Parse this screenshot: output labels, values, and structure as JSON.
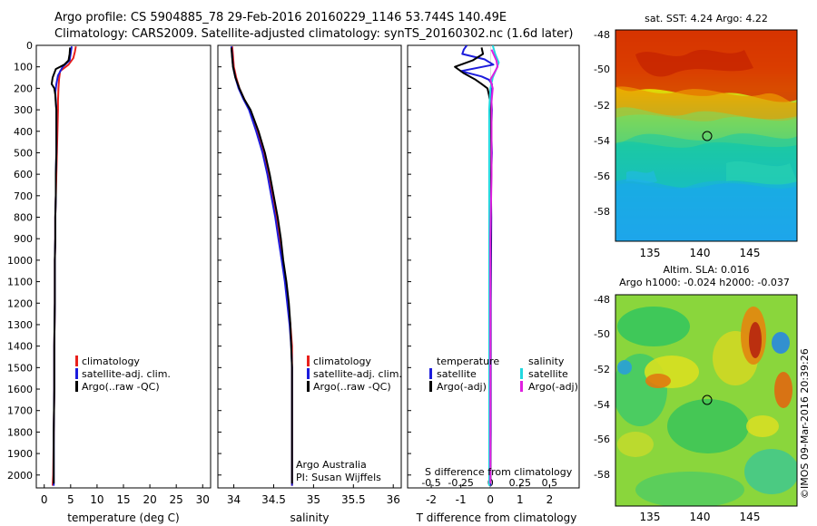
{
  "header": {
    "line1": "Argo profile: CS 5904885_78 29-Feb-2016 20160229_1146 53.744S 140.49E",
    "line2": "Climatology: CARS2009. Satellite-adjusted climatology: synTS_20160302.nc (1.6d later)"
  },
  "colors": {
    "climatology": "#e8201c",
    "satellite": "#1c1cdc",
    "argo": "#000000",
    "salinity_satellite": "#22d8e0",
    "salinity_argo": "#e020e0"
  },
  "chart_data": [
    {
      "type": "line",
      "xlabel": "temperature (deg C)",
      "ylabel": "",
      "xlim": [
        -1.5,
        31.5
      ],
      "ylim": [
        2060,
        0
      ],
      "xticks": [
        0,
        5,
        10,
        15,
        20,
        25,
        30
      ],
      "yticks": [
        0,
        100,
        200,
        300,
        400,
        500,
        600,
        700,
        800,
        900,
        1000,
        1100,
        1200,
        1300,
        1400,
        1500,
        1600,
        1700,
        1800,
        1900,
        2000
      ],
      "legend": [
        "climatology",
        "satellite-adj. clim.",
        "Argo(..raw -QC)"
      ],
      "legend_position": "lower-left",
      "series": [
        {
          "name": "climatology",
          "color": "#e8201c",
          "points": [
            [
              6.0,
              5
            ],
            [
              5.8,
              30
            ],
            [
              5.5,
              60
            ],
            [
              4.6,
              90
            ],
            [
              3.0,
              120
            ],
            [
              2.8,
              160
            ],
            [
              2.7,
              200
            ],
            [
              2.6,
              260
            ],
            [
              2.6,
              300
            ],
            [
              2.5,
              400
            ],
            [
              2.4,
              500
            ],
            [
              2.3,
              600
            ],
            [
              2.2,
              700
            ],
            [
              2.1,
              800
            ],
            [
              2.1,
              900
            ],
            [
              2.0,
              1000
            ],
            [
              2.0,
              1200
            ],
            [
              1.9,
              1400
            ],
            [
              1.9,
              1600
            ],
            [
              1.8,
              1800
            ],
            [
              1.7,
              2000
            ],
            [
              1.6,
              2050
            ]
          ]
        },
        {
          "name": "satellite-adj. clim.",
          "color": "#1c1cdc",
          "points": [
            [
              5.2,
              5
            ],
            [
              5.0,
              40
            ],
            [
              4.8,
              70
            ],
            [
              3.5,
              100
            ],
            [
              2.6,
              140
            ],
            [
              2.3,
              180
            ],
            [
              2.1,
              220
            ],
            [
              2.2,
              260
            ],
            [
              2.3,
              300
            ],
            [
              2.3,
              400
            ],
            [
              2.3,
              500
            ],
            [
              2.2,
              600
            ],
            [
              2.2,
              700
            ],
            [
              2.1,
              800
            ],
            [
              2.1,
              900
            ],
            [
              2.0,
              1000
            ],
            [
              2.0,
              1200
            ],
            [
              1.9,
              1400
            ],
            [
              1.9,
              1600
            ],
            [
              1.8,
              1800
            ],
            [
              1.8,
              2000
            ],
            [
              1.8,
              2050
            ]
          ]
        },
        {
          "name": "Argo(..raw -QC)",
          "color": "#000000",
          "points": [
            [
              4.9,
              10
            ],
            [
              4.8,
              40
            ],
            [
              4.6,
              70
            ],
            [
              3.8,
              90
            ],
            [
              2.2,
              110
            ],
            [
              1.6,
              150
            ],
            [
              1.4,
              180
            ],
            [
              1.9,
              200
            ],
            [
              2.1,
              230
            ],
            [
              2.2,
              270
            ],
            [
              2.3,
              300
            ],
            [
              2.3,
              400
            ],
            [
              2.3,
              500
            ],
            [
              2.2,
              600
            ],
            [
              2.2,
              700
            ],
            [
              2.1,
              800
            ],
            [
              2.1,
              900
            ],
            [
              2.0,
              1000
            ],
            [
              2.0,
              1200
            ],
            [
              1.9,
              1400
            ],
            [
              1.9,
              1600
            ],
            [
              1.8,
              1800
            ],
            [
              1.8,
              2000
            ],
            [
              1.8,
              2040
            ]
          ]
        }
      ]
    },
    {
      "type": "line",
      "xlabel": "salinity",
      "ylabel": "",
      "xlim": [
        33.8,
        36.1
      ],
      "ylim": [
        2060,
        0
      ],
      "xticks": [
        34,
        34.5,
        35,
        35.5,
        36
      ],
      "legend": [
        "climatology",
        "satellite-adj. clim.",
        "Argo(..raw -QC)"
      ],
      "legend_position": "lower-right",
      "annotations": [
        "Argo Australia",
        "PI: Susan Wijffels"
      ],
      "series": [
        {
          "name": "climatology",
          "color": "#e8201c",
          "points": [
            [
              33.98,
              5
            ],
            [
              33.99,
              50
            ],
            [
              34.0,
              100
            ],
            [
              34.03,
              150
            ],
            [
              34.07,
              200
            ],
            [
              34.13,
              250
            ],
            [
              34.2,
              300
            ],
            [
              34.29,
              400
            ],
            [
              34.37,
              500
            ],
            [
              34.43,
              600
            ],
            [
              34.48,
              700
            ],
            [
              34.53,
              800
            ],
            [
              34.57,
              900
            ],
            [
              34.61,
              1000
            ],
            [
              34.65,
              1100
            ],
            [
              34.68,
              1200
            ],
            [
              34.71,
              1300
            ],
            [
              34.73,
              1400
            ],
            [
              34.73,
              1500
            ],
            [
              34.73,
              1600
            ],
            [
              34.73,
              1800
            ],
            [
              34.73,
              2000
            ],
            [
              34.73,
              2050
            ]
          ]
        },
        {
          "name": "satellite-adj. clim.",
          "color": "#1c1cdc",
          "points": [
            [
              33.97,
              5
            ],
            [
              33.98,
              50
            ],
            [
              33.99,
              100
            ],
            [
              34.02,
              150
            ],
            [
              34.06,
              200
            ],
            [
              34.12,
              250
            ],
            [
              34.19,
              300
            ],
            [
              34.28,
              400
            ],
            [
              34.36,
              500
            ],
            [
              34.42,
              600
            ],
            [
              34.47,
              700
            ],
            [
              34.52,
              800
            ],
            [
              34.56,
              900
            ],
            [
              34.6,
              1000
            ],
            [
              34.64,
              1100
            ],
            [
              34.67,
              1200
            ],
            [
              34.7,
              1300
            ],
            [
              34.72,
              1400
            ],
            [
              34.73,
              1500
            ],
            [
              34.73,
              1600
            ],
            [
              34.73,
              1800
            ],
            [
              34.73,
              2000
            ],
            [
              34.73,
              2050
            ]
          ]
        },
        {
          "name": "Argo(..raw -QC)",
          "color": "#000000",
          "points": [
            [
              33.97,
              10
            ],
            [
              33.98,
              60
            ],
            [
              33.99,
              100
            ],
            [
              34.02,
              150
            ],
            [
              34.07,
              200
            ],
            [
              34.13,
              250
            ],
            [
              34.21,
              300
            ],
            [
              34.31,
              400
            ],
            [
              34.39,
              500
            ],
            [
              34.45,
              600
            ],
            [
              34.5,
              700
            ],
            [
              34.55,
              800
            ],
            [
              34.59,
              900
            ],
            [
              34.62,
              1000
            ],
            [
              34.66,
              1100
            ],
            [
              34.69,
              1200
            ],
            [
              34.71,
              1300
            ],
            [
              34.72,
              1400
            ],
            [
              34.73,
              1500
            ],
            [
              34.73,
              1700
            ],
            [
              34.73,
              1900
            ],
            [
              34.73,
              2040
            ]
          ]
        }
      ]
    },
    {
      "type": "line",
      "xlabel": "T difference from climatology",
      "x2label": "S difference from climatology",
      "ylabel": "",
      "xlim": [
        -2.8,
        3.0
      ],
      "x2lim": [
        -0.7,
        0.75
      ],
      "ylim": [
        2060,
        0
      ],
      "xticks": [
        -2,
        -1,
        0,
        1,
        2
      ],
      "x2ticks": [
        -0.5,
        -0.25,
        0,
        0.25,
        0.5
      ],
      "legend_groups": [
        {
          "title": "temperature",
          "entries": [
            "satellite",
            "Argo(-adj)"
          ]
        },
        {
          "title": "salinity",
          "entries": [
            "satellite",
            "Argo(-adj)"
          ]
        }
      ],
      "series": [
        {
          "name": "temperature satellite",
          "color": "#1c1cdc",
          "points": [
            [
              -0.8,
              0
            ],
            [
              -0.9,
              20
            ],
            [
              -0.95,
              40
            ],
            [
              -0.2,
              65
            ],
            [
              0.1,
              90
            ],
            [
              -1.0,
              120
            ],
            [
              -0.3,
              145
            ],
            [
              -0.05,
              160
            ],
            [
              0.05,
              180
            ],
            [
              0.02,
              220
            ],
            [
              0.05,
              300
            ],
            [
              0.03,
              400
            ],
            [
              0.05,
              500
            ],
            [
              0.03,
              600
            ],
            [
              0.02,
              700
            ],
            [
              0.03,
              800
            ],
            [
              0.02,
              1000
            ],
            [
              0.01,
              1200
            ],
            [
              0.01,
              1500
            ],
            [
              0.01,
              1800
            ],
            [
              0.0,
              2050
            ]
          ]
        },
        {
          "name": "temperature Argo(-adj)",
          "color": "#000000",
          "points": [
            [
              -0.3,
              10
            ],
            [
              -0.25,
              40
            ],
            [
              -0.6,
              70
            ],
            [
              -1.2,
              100
            ],
            [
              -0.9,
              130
            ],
            [
              -0.5,
              160
            ],
            [
              -0.3,
              180
            ],
            [
              -0.1,
              200
            ],
            [
              -0.05,
              230
            ],
            [
              0.0,
              270
            ],
            [
              0.02,
              350
            ],
            [
              0.03,
              500
            ],
            [
              0.02,
              700
            ],
            [
              0.01,
              900
            ],
            [
              0.0,
              1200
            ],
            [
              0.0,
              1600
            ],
            [
              0.0,
              2000
            ],
            [
              0.0,
              2040
            ]
          ]
        },
        {
          "name": "salinity satellite",
          "color": "#22d8e0",
          "points": [
            [
              0.02,
              0
            ],
            [
              0.04,
              40
            ],
            [
              0.07,
              80
            ],
            [
              0.05,
              110
            ],
            [
              0.02,
              150
            ],
            [
              0.0,
              200
            ],
            [
              -0.01,
              300
            ],
            [
              -0.01,
              500
            ],
            [
              -0.01,
              800
            ],
            [
              -0.01,
              1200
            ],
            [
              -0.01,
              1600
            ],
            [
              -0.01,
              2000
            ],
            [
              -0.01,
              2050
            ]
          ]
        },
        {
          "name": "salinity Argo(-adj)",
          "color": "#e020e0",
          "points": [
            [
              0.01,
              20
            ],
            [
              0.05,
              70
            ],
            [
              0.06,
              100
            ],
            [
              0.03,
              130
            ],
            [
              0.0,
              160
            ],
            [
              0.02,
              200
            ],
            [
              0.01,
              260
            ],
            [
              0.01,
              400
            ],
            [
              0.01,
              600
            ],
            [
              0.0,
              900
            ],
            [
              0.0,
              1300
            ],
            [
              0.0,
              1800
            ],
            [
              0.0,
              2040
            ]
          ]
        }
      ]
    }
  ],
  "maps": {
    "sst": {
      "title": "sat. SST: 4.24  Argo: 4.22",
      "yticks": [
        "-48",
        "-50",
        "-52",
        "-54",
        "-56",
        "-58"
      ],
      "xticks": [
        "135",
        "140",
        "145"
      ]
    },
    "sla": {
      "title1": "Altim. SLA: 0.016",
      "title2": "Argo h1000: -0.024 h2000: -0.037",
      "yticks": [
        "-48",
        "-50",
        "-52",
        "-54",
        "-56",
        "-58"
      ],
      "xticks": [
        "135",
        "140",
        "145"
      ]
    },
    "credit": "©IMOS 09-Mar-2016 20:39:26"
  }
}
